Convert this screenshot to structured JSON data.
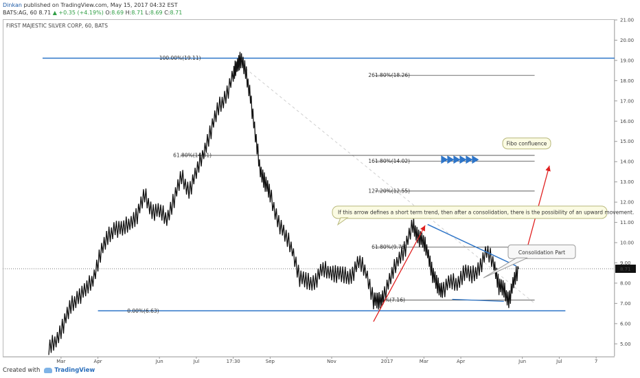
{
  "header": {
    "user": "Dinkan",
    "published_text": "published on TradingView.com, May 15, 2017 04:32 EST",
    "symbol_line": "BATS:AG, 60",
    "last": "8.71",
    "change": "▲ +0.35 (+4.19%)",
    "o_label": "O:",
    "o": "8.69",
    "h_label": "H:",
    "h": "8.71",
    "l_label": "L:",
    "l": "8.69",
    "c_label": "C:",
    "c": "8.71"
  },
  "chart_title": "FIRST MAJESTIC SILVER CORP, 60, BATS",
  "footer": {
    "created_with": "Created with",
    "brand": "TradingView"
  },
  "colors": {
    "blue": "#2e75c8",
    "red": "#e02020",
    "candle": "#111111",
    "fib_line": "#444444"
  },
  "chart_data": {
    "type": "line",
    "y_axis": {
      "min": 4.4,
      "max": 21.0,
      "ticks": [
        5.0,
        6.0,
        7.0,
        8.0,
        9.0,
        10.0,
        11.0,
        12.0,
        13.0,
        14.0,
        15.0,
        16.0,
        17.0,
        18.0,
        19.0,
        20.0,
        21.0
      ],
      "tick_labels": [
        "5.00",
        "6.00",
        "7.00",
        "8.00",
        "9.00",
        "10.00",
        "11.00",
        "12.00",
        "13.00",
        "14.00",
        "15.00",
        "16.00",
        "17.00",
        "18.00",
        "19.00",
        "20.00",
        "21.00"
      ],
      "last_price_label": "8.71",
      "last_price": 8.71
    },
    "x_axis": {
      "labels": [
        "Mar",
        "Apr",
        "Jun",
        "Jul",
        "17:30",
        "Sep",
        "Nov",
        "2017",
        "Mar",
        "Apr",
        "Jun",
        "Jul",
        "7"
      ],
      "t": [
        10,
        40,
        90,
        120,
        150,
        180,
        230,
        275,
        305,
        335,
        385,
        415,
        445
      ]
    },
    "t_range": [
      -5,
      460
    ],
    "series": [
      {
        "t": [
          0,
          6,
          12,
          18,
          24,
          30,
          36,
          42,
          48,
          54,
          60,
          66,
          72,
          78,
          84,
          90,
          96,
          102,
          108,
          114,
          120,
          126,
          132,
          138,
          144,
          150,
          153,
          156,
          160,
          164,
          168,
          172,
          176,
          180,
          186,
          192,
          198,
          204,
          210,
          216,
          222,
          228,
          234,
          240,
          246,
          252,
          258,
          264,
          268,
          272,
          278,
          284,
          290,
          296,
          300,
          304,
          308,
          312,
          316,
          320,
          326,
          332,
          338,
          344,
          350,
          356,
          362,
          366,
          370,
          374,
          378,
          382
        ],
        "y": [
          4.7,
          5.2,
          6.0,
          6.8,
          7.4,
          7.6,
          8.2,
          9.5,
          10.2,
          10.8,
          10.6,
          11.0,
          11.4,
          12.3,
          11.6,
          11.5,
          11.2,
          12.2,
          13.2,
          12.6,
          13.4,
          14.5,
          15.6,
          16.6,
          17.3,
          18.2,
          18.8,
          19.1,
          18.4,
          17.3,
          15.2,
          13.6,
          13.0,
          12.3,
          11.2,
          10.3,
          9.7,
          8.3,
          8.0,
          8.1,
          8.6,
          8.6,
          8.5,
          8.3,
          8.4,
          9.0,
          8.6,
          7.2,
          7.0,
          7.4,
          8.2,
          9.2,
          9.8,
          10.8,
          10.4,
          10.0,
          9.6,
          8.5,
          7.8,
          7.7,
          8.0,
          8.0,
          8.6,
          8.3,
          8.8,
          9.5,
          9.0,
          7.9,
          7.6,
          7.2,
          8.0,
          8.7
        ]
      }
    ],
    "fib_levels": [
      {
        "label": "100.00%(19.11)",
        "value": 19.11
      },
      {
        "label": "261.80%(18.26)",
        "value": 18.26
      },
      {
        "label": "61.80%(14.31)",
        "value": 14.31
      },
      {
        "label": "161.80%(14.02)",
        "value": 14.02
      },
      {
        "label": "127.20%(12.55)",
        "value": 12.55
      },
      {
        "label": "61.80%(9.78)",
        "value": 9.78
      },
      {
        "label": "0.00%(7.16)",
        "value": 7.16
      },
      {
        "label": "0.00%(6.63)",
        "value": 6.63
      }
    ],
    "annotations": {
      "callout_trend": "If this arrow defines a short term trend,  then after a consolidation,  there is the possibility of an  upward movement.",
      "callout_fibo": "Fibo confluence",
      "callout_consolidation": "Consolidation Part"
    },
    "grid": false
  }
}
